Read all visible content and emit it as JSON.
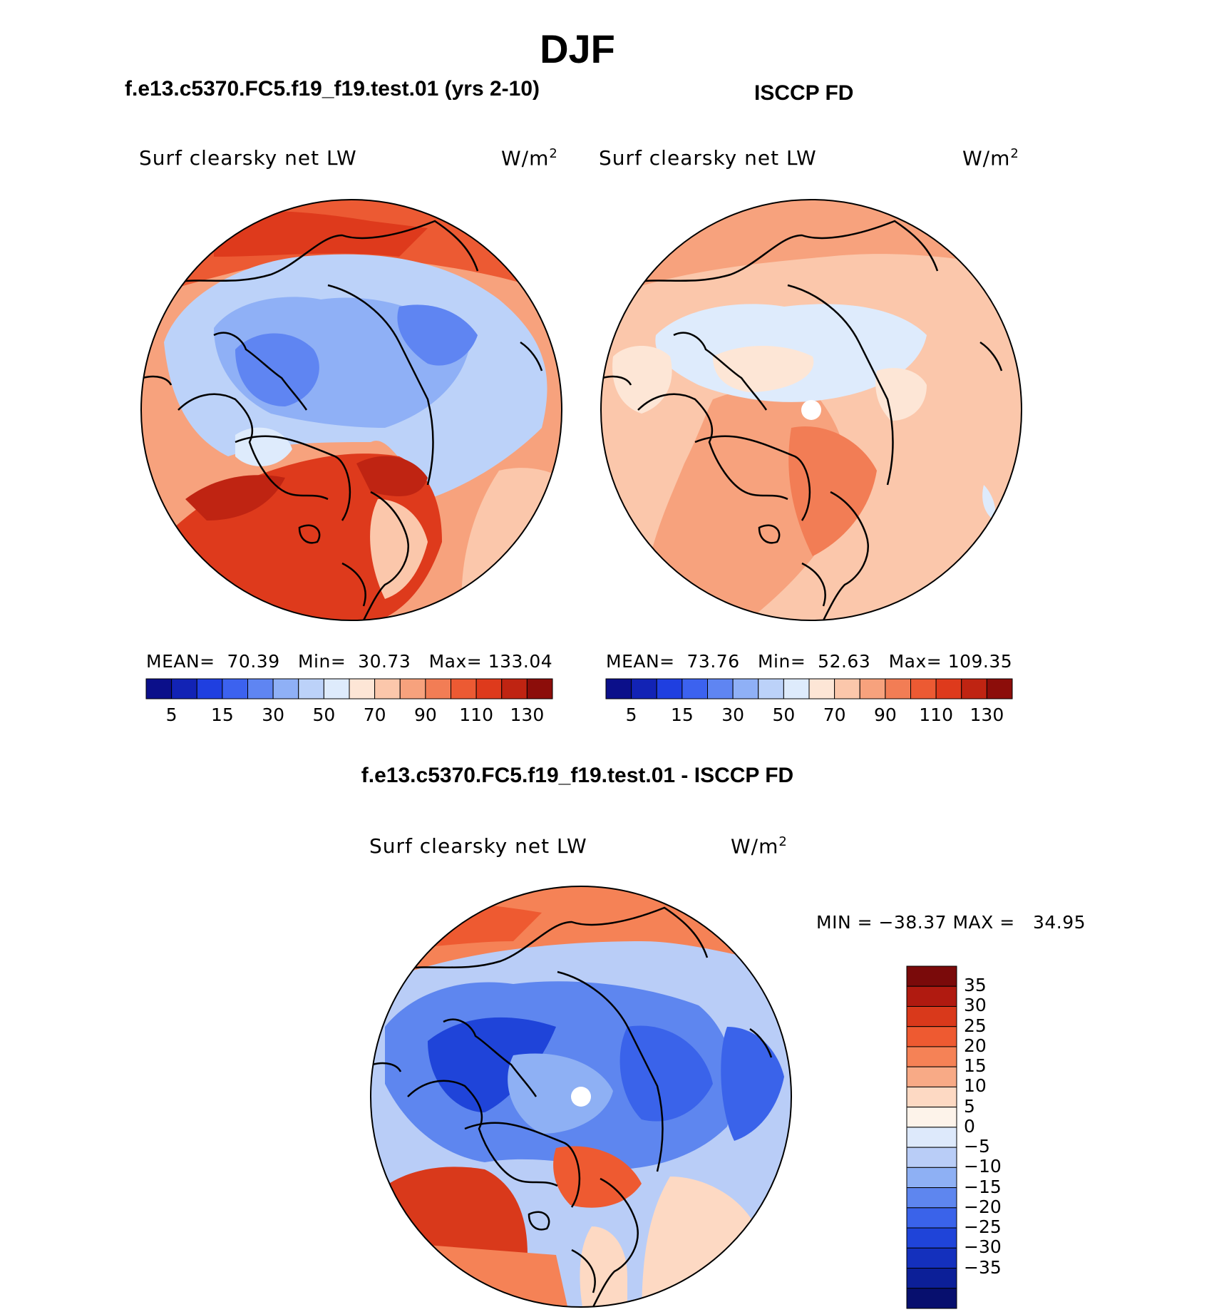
{
  "title": "DJF",
  "panels": [
    {
      "title": "f.e13.c5370.FC5.f19_f19.test.01 (yrs 2-10)",
      "variable": "Surf clearsky net LW",
      "units": "W/m",
      "units_sup": "2",
      "stats": {
        "mean_label": "MEAN=",
        "mean": "70.39",
        "min_label": "Min=",
        "min": "30.73",
        "max_label": "Max=",
        "max": "133.04"
      }
    },
    {
      "title": "ISCCP FD",
      "variable": "Surf clearsky net LW",
      "units": "W/m",
      "units_sup": "2",
      "stats": {
        "mean_label": "MEAN=",
        "mean": "73.76",
        "min_label": "Min=",
        "min": "52.63",
        "max_label": "Max=",
        "max": "109.35"
      }
    }
  ],
  "shared_colorbar": {
    "colors": [
      "#0b0f8a",
      "#1223b5",
      "#1f3fe0",
      "#3c62ef",
      "#5f85f2",
      "#8fb0f6",
      "#bcd2f9",
      "#deebfc",
      "#fde6d6",
      "#fbc7ab",
      "#f7a27d",
      "#f27d55",
      "#ec5a33",
      "#de3a1c",
      "#bf2412",
      "#8c0d0a"
    ],
    "tick_labels": [
      "5",
      "15",
      "30",
      "50",
      "70",
      "90",
      "110",
      "130"
    ]
  },
  "difference": {
    "title": "f.e13.c5370.FC5.f19_f19.test.01 - ISCCP FD",
    "variable": "Surf clearsky net LW",
    "units": "W/m",
    "units_sup": "2",
    "minmax": "MIN = −38.37 MAX =   34.95",
    "colorbar": {
      "colors": [
        "#7a0a0a",
        "#b01a10",
        "#d9391b",
        "#ee5a31",
        "#f58256",
        "#f8aa86",
        "#fdd9c3",
        "#fdf3ea",
        "#dde9fb",
        "#b9cdf7",
        "#8eb0f4",
        "#5e86ef",
        "#3a63ea",
        "#1f44d9",
        "#1430bd",
        "#0c1f98",
        "#070f6e"
      ],
      "tick_labels": [
        "35",
        "30",
        "25",
        "20",
        "15",
        "10",
        "5",
        "0",
        "−5",
        "−10",
        "−15",
        "−20",
        "−25",
        "−30",
        "−35"
      ]
    }
  }
}
